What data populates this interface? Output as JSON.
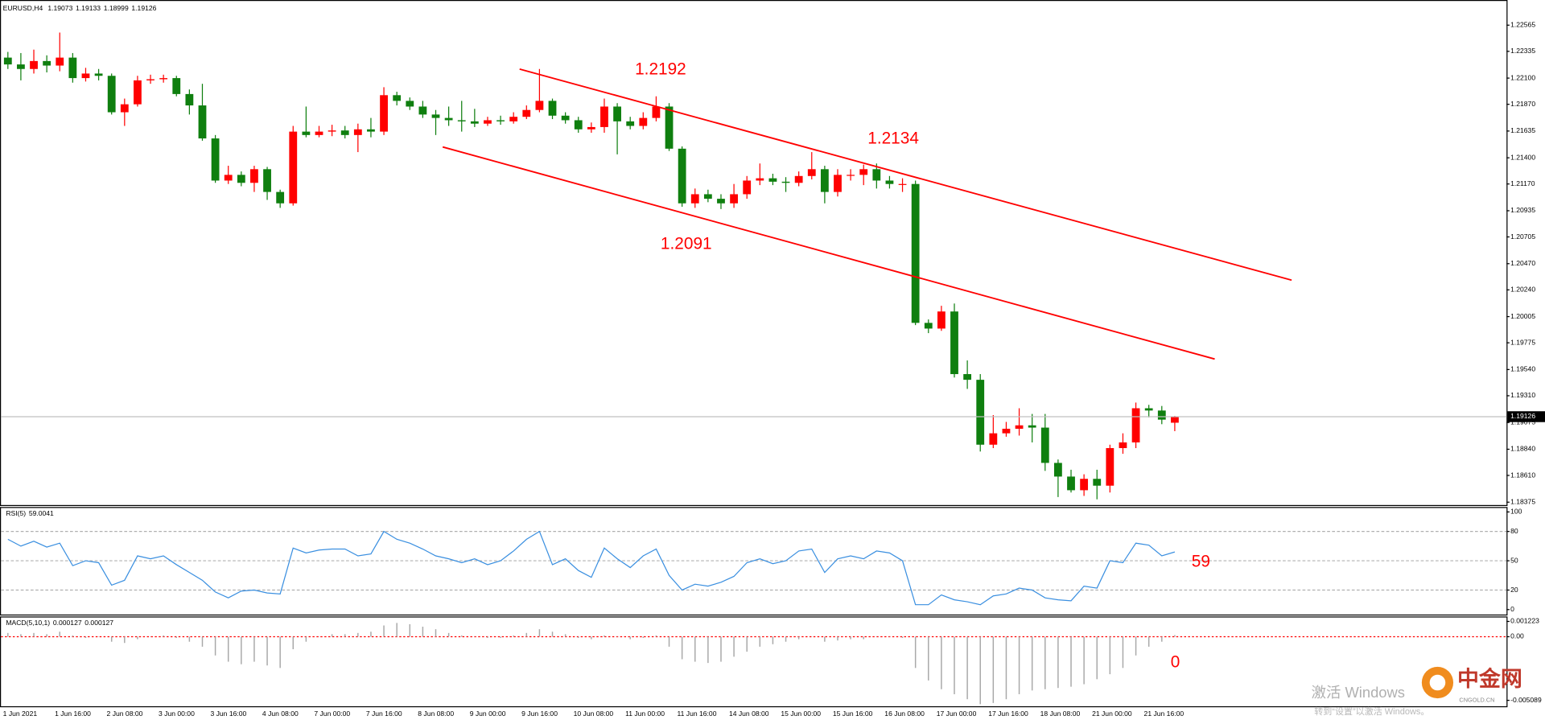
{
  "chart_data": [
    {
      "type": "candlestick",
      "title": "EURUSD,H4",
      "categories": [
        "1 Jun 2021",
        null,
        null,
        null,
        "1 Jun 16:00",
        null,
        null,
        null,
        "2 Jun 08:00",
        null,
        null,
        null,
        "3 Jun 00:00",
        null,
        null,
        null,
        "3 Jun 16:00",
        null,
        null,
        null,
        "4 Jun 08:00",
        null,
        null,
        null,
        "7 Jun 00:00",
        null,
        null,
        null,
        "7 Jun 16:00",
        null,
        null,
        null,
        "8 Jun 08:00",
        null,
        null,
        null,
        "9 Jun 00:00",
        null,
        null,
        null,
        "9 Jun 16:00",
        null,
        null,
        null,
        "10 Jun 08:00",
        null,
        null,
        null,
        "11 Jun 00:00",
        null,
        null,
        null,
        "11 Jun 16:00",
        null,
        null,
        null,
        "14 Jun 08:00",
        null,
        null,
        null,
        "15 Jun 00:00",
        null,
        null,
        null,
        "15 Jun 16:00",
        null,
        null,
        null,
        "16 Jun 08:00",
        null,
        null,
        null,
        "17 Jun 00:00",
        null,
        null,
        null,
        "17 Jun 16:00",
        null,
        null,
        null,
        "18 Jun 08:00",
        null,
        null,
        null,
        "21 Jun 00:00",
        null,
        null,
        null,
        "21 Jun 16:00",
        null,
        null
      ],
      "open": [
        1.2228,
        1.2222,
        1.2218,
        1.2225,
        1.2221,
        1.2228,
        1.221,
        1.2214,
        1.2212,
        1.218,
        1.2187,
        1.2208,
        1.2209,
        1.221,
        1.2196,
        1.2186,
        1.2157,
        1.212,
        1.2125,
        1.2118,
        1.213,
        1.211,
        1.21,
        1.2163,
        1.216,
        1.2163,
        1.2164,
        1.216,
        1.2165,
        1.2163,
        1.2195,
        1.219,
        1.2185,
        1.2178,
        1.2175,
        1.2173,
        1.2172,
        1.217,
        1.2173,
        1.2172,
        1.2176,
        1.2182,
        1.219,
        1.2177,
        1.2173,
        1.2165,
        1.2167,
        1.2185,
        1.2172,
        1.2168,
        1.2175,
        1.2185,
        1.2148,
        1.21,
        1.2108,
        1.2104,
        1.21,
        1.2108,
        1.212,
        1.2122,
        1.2119,
        1.2118,
        1.2124,
        1.213,
        1.211,
        1.2125,
        1.2125,
        1.213,
        1.212,
        1.2117,
        1.2117,
        1.1995,
        1.199,
        1.2005,
        1.195,
        1.1945,
        1.1888,
        1.1898,
        1.1902,
        1.1905,
        1.1903,
        1.1872,
        1.186,
        1.1848,
        1.1858,
        1.1852,
        1.1885,
        1.189,
        1.192,
        1.1918,
        1.19073
      ],
      "high": [
        1.2233,
        1.2232,
        1.2235,
        1.223,
        1.225,
        1.2232,
        1.2219,
        1.2218,
        1.2214,
        1.2192,
        1.2212,
        1.2213,
        1.2213,
        1.2212,
        1.22,
        1.2205,
        1.216,
        1.2133,
        1.2128,
        1.2133,
        1.2132,
        1.2112,
        1.2168,
        1.2185,
        1.2168,
        1.2169,
        1.2168,
        1.217,
        1.2175,
        1.2202,
        1.2198,
        1.2193,
        1.219,
        1.2182,
        1.2185,
        1.219,
        1.2183,
        1.2176,
        1.2177,
        1.218,
        1.2186,
        1.2218,
        1.2192,
        1.218,
        1.2176,
        1.2171,
        1.2192,
        1.2188,
        1.2176,
        1.218,
        1.2194,
        1.2188,
        1.215,
        1.2113,
        1.2112,
        1.2108,
        1.2117,
        1.2124,
        1.2135,
        1.2126,
        1.2123,
        1.2128,
        1.2145,
        1.2133,
        1.213,
        1.213,
        1.2134,
        1.2135,
        1.2124,
        1.2122,
        1.212,
        1.1998,
        1.201,
        1.2012,
        1.1962,
        1.195,
        1.1914,
        1.1908,
        1.192,
        1.1915,
        1.1915,
        1.1875,
        1.1866,
        1.1862,
        1.1866,
        1.1888,
        1.1898,
        1.1925,
        1.1923,
        1.1922,
        1.19133
      ],
      "low": [
        1.2218,
        1.2208,
        1.2214,
        1.2215,
        1.2216,
        1.2206,
        1.2207,
        1.2208,
        1.2178,
        1.2168,
        1.2185,
        1.2205,
        1.2206,
        1.2194,
        1.2178,
        1.2155,
        1.2118,
        1.2117,
        1.2115,
        1.211,
        1.2103,
        1.2096,
        1.2098,
        1.2158,
        1.2158,
        1.2159,
        1.2157,
        1.2145,
        1.2158,
        1.216,
        1.2186,
        1.2182,
        1.2175,
        1.216,
        1.2168,
        1.2163,
        1.2167,
        1.2168,
        1.2169,
        1.217,
        1.2174,
        1.218,
        1.2174,
        1.217,
        1.2162,
        1.2162,
        1.2162,
        1.2143,
        1.2165,
        1.2165,
        1.2172,
        1.2146,
        1.2097,
        1.2096,
        1.2101,
        1.2095,
        1.2096,
        1.2104,
        1.2116,
        1.2116,
        1.211,
        1.2115,
        1.2121,
        1.21,
        1.2106,
        1.212,
        1.2116,
        1.2113,
        1.2113,
        1.211,
        1.1993,
        1.1986,
        1.1988,
        1.1947,
        1.1937,
        1.1882,
        1.1885,
        1.1895,
        1.1896,
        1.189,
        1.1865,
        1.1842,
        1.1846,
        1.1843,
        1.184,
        1.1846,
        1.188,
        1.1885,
        1.1912,
        1.1906,
        1.18999
      ],
      "close": [
        1.2222,
        1.2218,
        1.2225,
        1.2221,
        1.2228,
        1.221,
        1.2214,
        1.2212,
        1.218,
        1.2187,
        1.2208,
        1.2209,
        1.221,
        1.2196,
        1.2186,
        1.2157,
        1.212,
        1.2125,
        1.2118,
        1.213,
        1.211,
        1.21,
        1.2163,
        1.216,
        1.2163,
        1.2164,
        1.216,
        1.2165,
        1.2163,
        1.2195,
        1.219,
        1.2185,
        1.2178,
        1.2175,
        1.2173,
        1.2172,
        1.217,
        1.2173,
        1.2172,
        1.2176,
        1.2182,
        1.219,
        1.2177,
        1.2173,
        1.2165,
        1.2167,
        1.2185,
        1.2172,
        1.2168,
        1.2175,
        1.2185,
        1.2148,
        1.21,
        1.2108,
        1.2104,
        1.21,
        1.2108,
        1.212,
        1.2122,
        1.2119,
        1.2118,
        1.2124,
        1.213,
        1.211,
        1.2125,
        1.2125,
        1.213,
        1.212,
        1.2117,
        1.2117,
        1.1995,
        1.199,
        1.2005,
        1.195,
        1.1945,
        1.1888,
        1.1898,
        1.1902,
        1.1905,
        1.1903,
        1.1872,
        1.186,
        1.1848,
        1.1858,
        1.1852,
        1.1885,
        1.189,
        1.192,
        1.1918,
        1.191,
        1.19126
      ],
      "up_color": "#ff0000",
      "down_color": "#0f7f0f",
      "ylim": [
        1.1835,
        1.2276
      ],
      "yticks": [
        1.22565,
        1.22335,
        {
          "value": 1.221,
          "label": "1.22100"
        },
        {
          "value": 1.2187,
          "label": "1.21870"
        },
        1.21635,
        {
          "value": 1.214,
          "label": "1.21400"
        },
        {
          "value": 1.2117,
          "label": "1.21170"
        },
        1.20935,
        1.20705,
        {
          "value": 1.2047,
          "label": "1.20470"
        },
        {
          "value": 1.2024,
          "label": "1.20240"
        },
        1.20005,
        1.19775,
        {
          "value": 1.1954,
          "label": "1.19540"
        },
        {
          "value": 1.1931,
          "label": "1.19310"
        },
        1.19075,
        {
          "value": 1.1884,
          "label": "1.18840"
        },
        {
          "value": 1.1861,
          "label": "1.18610"
        },
        1.18375
      ],
      "annotations": [
        "1.2192",
        "1.2134",
        "1.2091"
      ]
    },
    {
      "type": "line",
      "title": "RSI(5)",
      "values": [
        72,
        65,
        70,
        64,
        68,
        45,
        50,
        48,
        25,
        30,
        55,
        52,
        55,
        46,
        38,
        30,
        18,
        12,
        19,
        20,
        17,
        16,
        63,
        58,
        61,
        62,
        62,
        55,
        57,
        80,
        72,
        68,
        62,
        55,
        52,
        48,
        52,
        46,
        50,
        60,
        72,
        80,
        46,
        52,
        40,
        33,
        63,
        52,
        43,
        55,
        62,
        35,
        20,
        26,
        24,
        28,
        34,
        48,
        52,
        47,
        50,
        60,
        62,
        38,
        52,
        55,
        52,
        60,
        58,
        50,
        5,
        5,
        15,
        10,
        8,
        5,
        14,
        16,
        22,
        20,
        12,
        10,
        9,
        24,
        22,
        50,
        48,
        68,
        66,
        55,
        59.0041
      ],
      "color": "#3a8fe0",
      "ylim": [
        0,
        100
      ],
      "yticks": [
        100,
        80,
        50,
        20,
        0
      ],
      "grid": true,
      "annotations": [
        "59"
      ]
    },
    {
      "type": "bar",
      "title": "MACD(5,10,1)",
      "values": [
        0.0003,
        0.0002,
        0.0003,
        0.0002,
        0.0004,
        0.0001,
        -0.0001,
        0,
        -0.0004,
        -0.0005,
        -0.0002,
        0,
        0.0001,
        -0.0001,
        -0.0004,
        -0.0008,
        -0.0015,
        -0.002,
        -0.0022,
        -0.002,
        -0.0023,
        -0.0025,
        -0.001,
        -0.0004,
        0,
        0.0002,
        0.0002,
        0.0003,
        0.0004,
        0.0009,
        0.0011,
        0.001,
        0.0008,
        0.0006,
        0.0003,
        0.0001,
        0,
        -0.0001,
        -0.0001,
        0.0001,
        0.0003,
        0.0006,
        0.0004,
        0.0002,
        -0.0001,
        -0.0002,
        0.0001,
        0,
        -0.0002,
        -0.0001,
        0.0001,
        -0.0008,
        -0.0018,
        -0.002,
        -0.0021,
        -0.002,
        -0.0016,
        -0.0012,
        -0.0008,
        -0.0006,
        -0.0004,
        -0.0002,
        0,
        -0.0004,
        -0.0003,
        -0.0002,
        -0.0002,
        0,
        0,
        -0.0001,
        -0.0025,
        -0.0035,
        -0.0042,
        -0.0046,
        -0.005,
        -0.0054,
        -0.0053,
        -0.005,
        -0.0046,
        -0.0043,
        -0.0042,
        -0.0041,
        -0.004,
        -0.0038,
        -0.0034,
        -0.003,
        -0.0025,
        -0.0015,
        -0.0008,
        -0.0004,
        0.000127
      ],
      "signal": 0.000127,
      "color": "#a8a8a8",
      "zero_line_color": "#ff0000",
      "ylim": [
        -0.005089,
        0.001223
      ],
      "yticks": [
        0.001223,
        {
          "value": 0,
          "label": "0.00"
        },
        -0.005089
      ],
      "annotations": [
        "0"
      ]
    }
  ],
  "watermark": {
    "line1": "激活 Windows",
    "line2": "转到“设置”以激活 Windows。"
  },
  "logo": {
    "name": "中金网",
    "site": "CNGOLD.CN"
  }
}
